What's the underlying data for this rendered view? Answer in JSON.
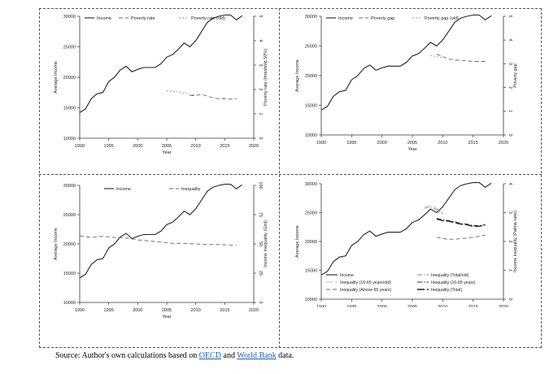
{
  "chart_data": [
    {
      "type": "line",
      "xlabel": "Year",
      "ylabel": "Average Income",
      "y2label": "Poverty rate (threshold 50%)",
      "xlim": [
        1990,
        2020
      ],
      "ylim": [
        10000,
        30000
      ],
      "y2lim": [
        0,
        5
      ],
      "xticks": [
        "1990",
        "1995",
        "2000",
        "2005",
        "2010",
        "2015",
        "2020"
      ],
      "yticks": [
        "10000",
        "15000",
        "20000",
        "25000",
        "30000"
      ],
      "y2ticks": [
        "0",
        "1",
        "2",
        "3",
        "4",
        "5"
      ],
      "legend": {
        "placement": "top",
        "entries": [
          "Income",
          "Poverty rate",
          "Poverty rate (old)"
        ]
      },
      "series": [
        {
          "name": "Income",
          "axis": "left",
          "style": "solid",
          "x": [
            1990,
            1991,
            1992,
            1993,
            1994,
            1995,
            1996,
            1997,
            1998,
            1999,
            2000,
            2001,
            2002,
            2003,
            2004,
            2005,
            2006,
            2007,
            2008,
            2009,
            2010,
            2011,
            2012,
            2013,
            2014,
            2015,
            2016,
            2017,
            2018
          ],
          "y": [
            14200,
            14800,
            16500,
            17300,
            17500,
            19300,
            20000,
            21200,
            21800,
            20900,
            21300,
            21600,
            21600,
            21600,
            22200,
            23300,
            23700,
            24600,
            25600,
            25000,
            26000,
            27500,
            29000,
            29700,
            30000,
            30200,
            30200,
            29400,
            30100
          ]
        },
        {
          "name": "Poverty rate",
          "axis": "right",
          "style": "dashed",
          "x": [
            2009,
            2010,
            2011,
            2012,
            2013,
            2014,
            2015,
            2016,
            2017
          ],
          "y": [
            1.75,
            1.75,
            1.8,
            1.72,
            1.65,
            1.62,
            1.62,
            1.6,
            1.62
          ]
        },
        {
          "name": "Poverty rate (old)",
          "axis": "right",
          "style": "dotted",
          "x": [
            2005,
            2006,
            2007,
            2008,
            2009,
            2010
          ],
          "y": [
            1.95,
            1.92,
            1.9,
            1.85,
            1.8,
            1.78
          ]
        }
      ]
    },
    {
      "type": "line",
      "xlabel": "Year",
      "ylabel": "Average Income",
      "y2label": "Poverty gap",
      "xlim": [
        1990,
        2020
      ],
      "ylim": [
        10000,
        30000
      ],
      "y2lim": [
        0,
        5
      ],
      "xticks": [
        "1990",
        "1995",
        "2000",
        "2005",
        "2010",
        "2015",
        "2020"
      ],
      "yticks": [
        "10000",
        "15000",
        "20000",
        "25000",
        "30000"
      ],
      "y2ticks": [
        "0",
        "1",
        "2",
        "3",
        "4",
        "5"
      ],
      "legend": {
        "placement": "top",
        "entries": [
          "Income",
          "Poverty gap",
          "Poverty gap (old)"
        ]
      },
      "series": [
        {
          "name": "Income",
          "axis": "left",
          "style": "solid",
          "x": [
            1990,
            1991,
            1992,
            1993,
            1994,
            1995,
            1996,
            1997,
            1998,
            1999,
            2000,
            2001,
            2002,
            2003,
            2004,
            2005,
            2006,
            2007,
            2008,
            2009,
            2010,
            2011,
            2012,
            2013,
            2014,
            2015,
            2016,
            2017,
            2018
          ],
          "y": [
            14200,
            14800,
            16500,
            17300,
            17500,
            19300,
            20000,
            21200,
            21800,
            20900,
            21300,
            21600,
            21600,
            21600,
            22200,
            23300,
            23700,
            24600,
            25600,
            25000,
            26000,
            27500,
            29000,
            29700,
            30000,
            30200,
            30200,
            29400,
            30100
          ]
        },
        {
          "name": "Poverty gap",
          "axis": "right",
          "style": "dashed",
          "x": [
            2009,
            2010,
            2011,
            2012,
            2013,
            2014,
            2015,
            2016,
            2017
          ],
          "y": [
            3.4,
            3.3,
            3.2,
            3.15,
            3.15,
            3.12,
            3.1,
            3.1,
            3.1
          ]
        },
        {
          "name": "Poverty gap (old)",
          "axis": "right",
          "style": "dotted",
          "x": [
            2008,
            2009,
            2010
          ],
          "y": [
            3.35,
            3.3,
            3.25
          ]
        }
      ]
    },
    {
      "type": "line",
      "xlabel": "Year",
      "ylabel": "Average Income",
      "y2label": "Income inequality (Gini)",
      "xlim": [
        1990,
        2020
      ],
      "ylim": [
        10000,
        30000
      ],
      "y2lim": [
        0,
        100
      ],
      "xticks": [
        "1990",
        "1995",
        "2000",
        "2005",
        "2010",
        "2015",
        "2020"
      ],
      "yticks": [
        "10000",
        "15000",
        "20000",
        "25000",
        "30000"
      ],
      "y2ticks": [
        "0",
        "25",
        "50",
        "75",
        "100"
      ],
      "legend": {
        "placement": "top",
        "entries": [
          "Income",
          "Inequality"
        ]
      },
      "series": [
        {
          "name": "Income",
          "axis": "left",
          "style": "solid",
          "x": [
            1990,
            1991,
            1992,
            1993,
            1994,
            1995,
            1996,
            1997,
            1998,
            1999,
            2000,
            2001,
            2002,
            2003,
            2004,
            2005,
            2006,
            2007,
            2008,
            2009,
            2010,
            2011,
            2012,
            2013,
            2014,
            2015,
            2016,
            2017,
            2018
          ],
          "y": [
            14200,
            14800,
            16500,
            17300,
            17500,
            19300,
            20000,
            21200,
            21800,
            20900,
            21300,
            21600,
            21600,
            21600,
            22200,
            23300,
            23700,
            24600,
            25600,
            25000,
            26000,
            27500,
            29000,
            29700,
            30000,
            30200,
            30200,
            29400,
            30100
          ]
        },
        {
          "name": "Inequality",
          "axis": "right",
          "style": "dashed",
          "x": [
            1990,
            1992,
            1994,
            1996,
            1998,
            2000,
            2002,
            2004,
            2006,
            2008,
            2010,
            2012,
            2014,
            2016,
            2017
          ],
          "y": [
            57,
            55.5,
            56.5,
            55.5,
            55,
            53.5,
            52.5,
            51.5,
            50.5,
            50.5,
            50,
            49.5,
            49.5,
            49,
            49
          ]
        }
      ]
    },
    {
      "type": "line",
      "xlabel": "Year",
      "ylabel": "Average Income",
      "y2label": "Income inequality (Palma ratio)",
      "xlim": [
        1990,
        2020
      ],
      "ylim": [
        10000,
        30000
      ],
      "y2lim": [
        0,
        4
      ],
      "xticks": [
        "1990",
        "1995",
        "2000",
        "2005",
        "2010",
        "2015",
        "2020"
      ],
      "yticks": [
        "10000",
        "15000",
        "20000",
        "25000",
        "30000"
      ],
      "y2ticks": [
        "0",
        "1",
        "2",
        "3",
        "4"
      ],
      "legend": {
        "placement": "bottom-inside",
        "entries": [
          "Income",
          "Inequality (Total/old)",
          "Inequality (16-65 years/old)",
          "Inequality (16-65 years)",
          "Inequality (Above 65 years)",
          "Inequality (Total)"
        ]
      },
      "series": [
        {
          "name": "Income",
          "axis": "left",
          "style": "solid",
          "x": [
            1990,
            1991,
            1992,
            1993,
            1994,
            1995,
            1996,
            1997,
            1998,
            1999,
            2000,
            2001,
            2002,
            2003,
            2004,
            2005,
            2006,
            2007,
            2008,
            2009,
            2010,
            2011,
            2012,
            2013,
            2014,
            2015,
            2016,
            2017,
            2018
          ],
          "y": [
            14200,
            14800,
            16500,
            17300,
            17500,
            19300,
            20000,
            21200,
            21800,
            20900,
            21300,
            21600,
            21600,
            21600,
            22200,
            23300,
            23700,
            24600,
            25600,
            25000,
            26000,
            27500,
            29000,
            29700,
            30000,
            30200,
            30200,
            29400,
            30100
          ]
        },
        {
          "name": "Inequality (Total/old)",
          "axis": "right",
          "style": "dashdot",
          "x": [
            2007,
            2008,
            2009,
            2010
          ],
          "y": [
            3.15,
            3.2,
            3.1,
            2.95
          ]
        },
        {
          "name": "Inequality (16-65 years/old)",
          "axis": "right",
          "style": "longdash-light",
          "x": [
            2007,
            2008,
            2009,
            2010
          ],
          "y": [
            3.2,
            3.25,
            3.15,
            3.0
          ]
        },
        {
          "name": "Inequality (16-65 years)",
          "axis": "right",
          "style": "dashdot-dark",
          "x": [
            2009,
            2010,
            2011,
            2012,
            2013,
            2014,
            2015,
            2016,
            2017
          ],
          "y": [
            2.8,
            2.75,
            2.72,
            2.68,
            2.62,
            2.6,
            2.55,
            2.55,
            2.58
          ]
        },
        {
          "name": "Inequality (Above 65 years)",
          "axis": "right",
          "style": "dashed",
          "x": [
            2009,
            2010,
            2011,
            2012,
            2013,
            2014,
            2015,
            2016,
            2017
          ],
          "y": [
            2.15,
            2.1,
            2.08,
            2.08,
            2.1,
            2.12,
            2.15,
            2.18,
            2.22
          ]
        },
        {
          "name": "Inequality (Total)",
          "axis": "right",
          "style": "longdash-dark",
          "x": [
            2009,
            2010,
            2011,
            2012,
            2013,
            2014,
            2015,
            2016,
            2017
          ],
          "y": [
            2.78,
            2.72,
            2.7,
            2.65,
            2.6,
            2.58,
            2.52,
            2.53,
            2.56
          ]
        }
      ]
    }
  ],
  "caption": {
    "prefix": "Source: Author's own calculations based on ",
    "link1": "OECD",
    "middle": " and ",
    "link2": "World Bank",
    "suffix": " data."
  }
}
